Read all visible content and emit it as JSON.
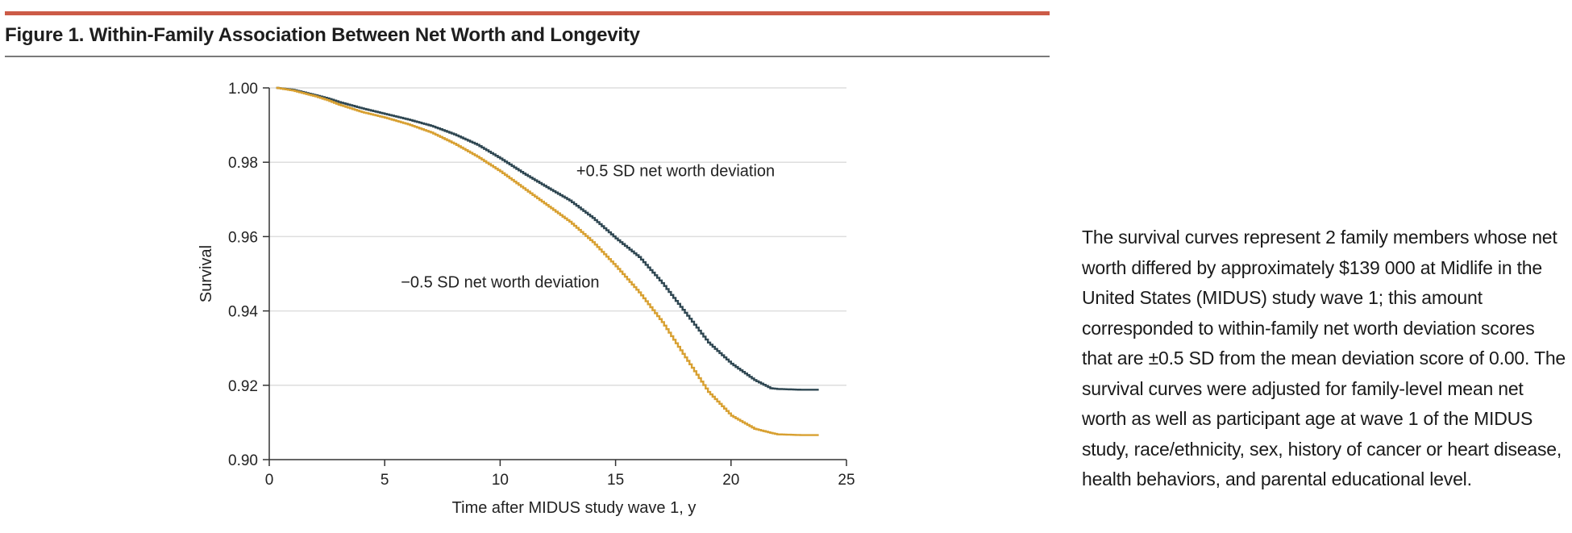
{
  "figure": {
    "title": "Figure 1. Within-Family Association Between Net Worth and Longevity",
    "accent_color": "#cc5b47"
  },
  "caption": {
    "text": "The survival curves represent 2 family members whose net worth differed by approximately $139 000 at Midlife in the United States (MIDUS) study wave 1; this amount corresponded to within-family net worth deviation scores that are ±0.5 SD from the mean deviation score of 0.00. The survival curves were adjusted for family-level mean net worth as well as participant age at wave 1 of the MIDUS study, race/ethnicity, sex, history of cancer or heart disease, health behaviors, and parental educational level."
  },
  "chart_data": {
    "type": "line",
    "title": "",
    "xlabel": "Time after MIDUS study wave 1, y",
    "ylabel": "Survival",
    "xlim": [
      0,
      25
    ],
    "ylim": [
      0.9,
      1.0
    ],
    "xticks": [
      0,
      5,
      10,
      15,
      20,
      25
    ],
    "yticks": [
      0.9,
      0.92,
      0.94,
      0.96,
      0.98,
      1.0
    ],
    "ytick_labels": [
      "0.90",
      "0.92",
      "0.94",
      "0.96",
      "0.98",
      "1.00"
    ],
    "grid": "horizontal",
    "step": true,
    "series": [
      {
        "name": "+0.5 SD net worth deviation",
        "color": "#2f4752",
        "x": [
          0.3,
          1,
          2,
          2.5,
          3,
          4,
          5,
          6,
          7,
          8,
          9,
          10,
          11,
          12,
          13,
          14,
          15,
          16,
          17,
          18,
          19,
          20,
          21,
          21.7,
          22,
          23,
          23.8
        ],
        "y": [
          1.0,
          0.9995,
          0.998,
          0.9972,
          0.9962,
          0.9945,
          0.993,
          0.9915,
          0.9898,
          0.9875,
          0.9847,
          0.981,
          0.977,
          0.9733,
          0.9697,
          0.965,
          0.9595,
          0.9545,
          0.9475,
          0.9395,
          0.9315,
          0.9258,
          0.9214,
          0.9192,
          0.919,
          0.9188,
          0.9188
        ]
      },
      {
        "name": "−0.5 SD net worth deviation",
        "color": "#d8a031",
        "x": [
          0.3,
          1,
          2,
          2.5,
          3,
          4,
          5,
          6,
          7,
          8,
          9,
          10,
          11,
          12,
          13,
          14,
          15,
          16,
          17,
          18,
          19,
          20,
          21,
          21.7,
          22,
          23,
          23.8
        ],
        "y": [
          1.0,
          0.9993,
          0.9977,
          0.9967,
          0.9955,
          0.9935,
          0.992,
          0.9902,
          0.988,
          0.985,
          0.9815,
          0.9775,
          0.973,
          0.9685,
          0.964,
          0.9585,
          0.952,
          0.945,
          0.937,
          0.9275,
          0.9182,
          0.9118,
          0.9083,
          0.9072,
          0.9068,
          0.9066,
          0.9066
        ]
      }
    ],
    "annotations": [
      {
        "text": "+0.5 SD net worth deviation",
        "x": 13.3,
        "y": 0.9763
      },
      {
        "text": "−0.5 SD net worth deviation",
        "x": 5.7,
        "y": 0.9463
      }
    ]
  }
}
